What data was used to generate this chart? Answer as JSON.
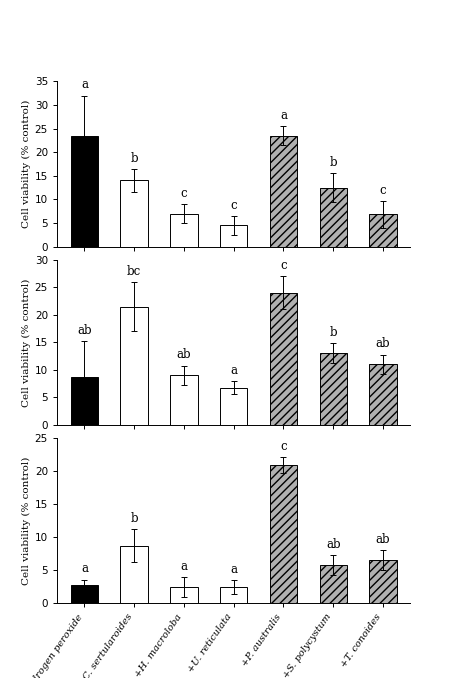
{
  "panels": [
    {
      "ylim": [
        0,
        35
      ],
      "yticks": [
        0,
        5,
        10,
        15,
        20,
        25,
        30,
        35
      ],
      "ylabel": "Cell viability (% control)",
      "bars": [
        {
          "value": 23.5,
          "err": 8.5,
          "color": "black",
          "hatch": null,
          "letter": "a"
        },
        {
          "value": 14.0,
          "err": 2.5,
          "color": "white",
          "hatch": null,
          "letter": "b"
        },
        {
          "value": 7.0,
          "err": 2.0,
          "color": "white",
          "hatch": null,
          "letter": "c"
        },
        {
          "value": 4.5,
          "err": 2.0,
          "color": "white",
          "hatch": null,
          "letter": "c"
        },
        {
          "value": 23.5,
          "err": 2.0,
          "color": "gray",
          "hatch": "////",
          "letter": "a"
        },
        {
          "value": 12.5,
          "err": 3.0,
          "color": "gray",
          "hatch": "////",
          "letter": "b"
        },
        {
          "value": 6.8,
          "err": 2.8,
          "color": "gray",
          "hatch": "////",
          "letter": "c"
        }
      ]
    },
    {
      "ylim": [
        0,
        30
      ],
      "yticks": [
        0,
        5,
        10,
        15,
        20,
        25,
        30
      ],
      "ylabel": "Cell viability (% control)",
      "bars": [
        {
          "value": 8.8,
          "err": 6.5,
          "color": "black",
          "hatch": null,
          "letter": "ab"
        },
        {
          "value": 21.5,
          "err": 4.5,
          "color": "white",
          "hatch": null,
          "letter": "bc"
        },
        {
          "value": 9.0,
          "err": 1.8,
          "color": "white",
          "hatch": null,
          "letter": "ab"
        },
        {
          "value": 6.8,
          "err": 1.2,
          "color": "white",
          "hatch": null,
          "letter": "a"
        },
        {
          "value": 24.0,
          "err": 3.0,
          "color": "gray",
          "hatch": "////",
          "letter": "c"
        },
        {
          "value": 13.0,
          "err": 1.8,
          "color": "gray",
          "hatch": "////",
          "letter": "b"
        },
        {
          "value": 11.0,
          "err": 1.8,
          "color": "gray",
          "hatch": "////",
          "letter": "ab"
        }
      ]
    },
    {
      "ylim": [
        0,
        25
      ],
      "yticks": [
        0,
        5,
        10,
        15,
        20,
        25
      ],
      "ylabel": "Cell viability (% control)",
      "bars": [
        {
          "value": 2.8,
          "err": 0.8,
          "color": "black",
          "hatch": null,
          "letter": "a"
        },
        {
          "value": 8.7,
          "err": 2.5,
          "color": "white",
          "hatch": null,
          "letter": "b"
        },
        {
          "value": 2.5,
          "err": 1.5,
          "color": "white",
          "hatch": null,
          "letter": "a"
        },
        {
          "value": 2.5,
          "err": 1.0,
          "color": "white",
          "hatch": null,
          "letter": "a"
        },
        {
          "value": 21.0,
          "err": 1.2,
          "color": "gray",
          "hatch": "////",
          "letter": "c"
        },
        {
          "value": 5.8,
          "err": 1.5,
          "color": "gray",
          "hatch": "////",
          "letter": "ab"
        },
        {
          "value": 6.6,
          "err": 1.5,
          "color": "gray",
          "hatch": "////",
          "letter": "ab"
        }
      ]
    }
  ],
  "xticklabels": [
    "Hydrogen peroxide",
    "+C. sertularoides",
    "+H. macroloba",
    "+U. reticulata",
    "+P. australis",
    "+S. polycystum",
    "+T. conoides"
  ],
  "bar_width": 0.55,
  "gray_facecolor": "#b0b0b0",
  "edgecolor": "black",
  "letter_fontsize": 8.5,
  "ylabel_fontsize": 7.5,
  "tick_fontsize": 7.5,
  "xtick_fontsize": 7.0,
  "linewidth": 0.7
}
